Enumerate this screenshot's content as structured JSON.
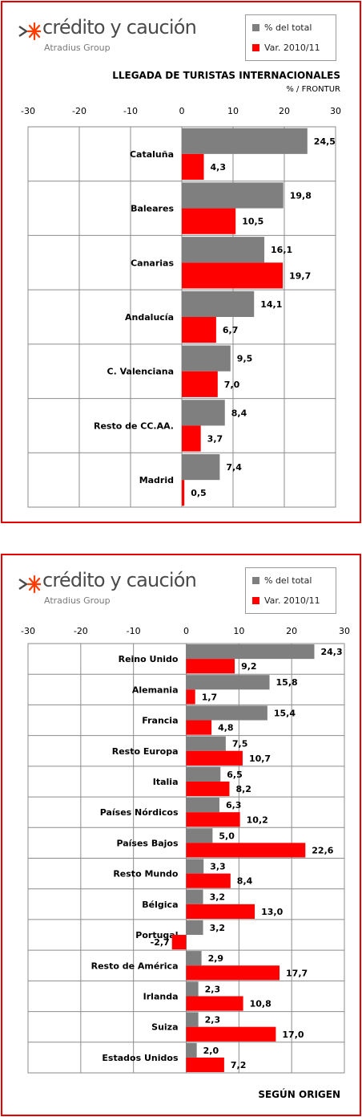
{
  "logo": {
    "name": "crédito y caución",
    "group": "Atradius Group"
  },
  "legend": {
    "series1": "% del total",
    "series2": "Var. 2010/11"
  },
  "colors": {
    "series1": "#7f7f7f",
    "series2": "#ff0000",
    "frame": "#e60000"
  },
  "chart_data": [
    {
      "type": "bar",
      "orientation": "horizontal",
      "title": "LLEGADA DE TURISTAS INTERNACIONALES",
      "subtitle": "% / FRONTUR",
      "xlim": [
        -30,
        30
      ],
      "ticks": [
        -30,
        -20,
        -10,
        0,
        10,
        20,
        30
      ],
      "grid": true,
      "legend_position": "top-right",
      "categories": [
        "Cataluña",
        "Baleares",
        "Canarias",
        "Andalucía",
        "C. Valenciana",
        "Resto de CC.AA.",
        "Madrid"
      ],
      "series": [
        {
          "name": "% del total",
          "values": [
            24.5,
            19.8,
            16.1,
            14.1,
            9.5,
            8.4,
            7.4
          ],
          "labels": [
            "24,5",
            "19,8",
            "16,1",
            "14,1",
            "9,5",
            "8,4",
            "7,4"
          ]
        },
        {
          "name": "Var. 2010/11",
          "values": [
            4.3,
            10.5,
            19.7,
            6.7,
            7.0,
            3.7,
            0.5
          ],
          "labels": [
            "4,3",
            "10,5",
            "19,7",
            "6,7",
            "7,0",
            "3,7",
            "0,5"
          ]
        }
      ]
    },
    {
      "type": "bar",
      "orientation": "horizontal",
      "footer": "SEGÚN ORIGEN",
      "xlim": [
        -30,
        30
      ],
      "ticks": [
        -30,
        -20,
        -10,
        0,
        10,
        20,
        30
      ],
      "grid": true,
      "legend_position": "top-right",
      "categories": [
        "Reino Unido",
        "Alemania",
        "Francia",
        "Resto Europa",
        "Italia",
        "Países Nórdicos",
        "Países Bajos",
        "Resto Mundo",
        "Bélgica",
        "Portugal",
        "Resto de América",
        "Irlanda",
        "Suiza",
        "Estados Unidos"
      ],
      "series": [
        {
          "name": "% del total",
          "values": [
            24.3,
            15.8,
            15.4,
            7.5,
            6.5,
            6.3,
            5.0,
            3.3,
            3.2,
            3.2,
            2.9,
            2.3,
            2.3,
            2.0
          ],
          "labels": [
            "24,3",
            "15,8",
            "15,4",
            "7,5",
            "6,5",
            "6,3",
            "5,0",
            "3,3",
            "3,2",
            "3,2",
            "2,9",
            "2,3",
            "2,3",
            "2,0"
          ]
        },
        {
          "name": "Var. 2010/11",
          "values": [
            9.2,
            1.7,
            4.8,
            10.7,
            8.2,
            10.2,
            22.6,
            8.4,
            13.0,
            -2.7,
            17.7,
            10.8,
            17.0,
            7.2
          ],
          "labels": [
            "9,2",
            "1,7",
            "4,8",
            "10,7",
            "8,2",
            "10,2",
            "22,6",
            "8,4",
            "13,0",
            "-2,7",
            "17,7",
            "10,8",
            "17,0",
            "7,2"
          ]
        }
      ]
    }
  ]
}
